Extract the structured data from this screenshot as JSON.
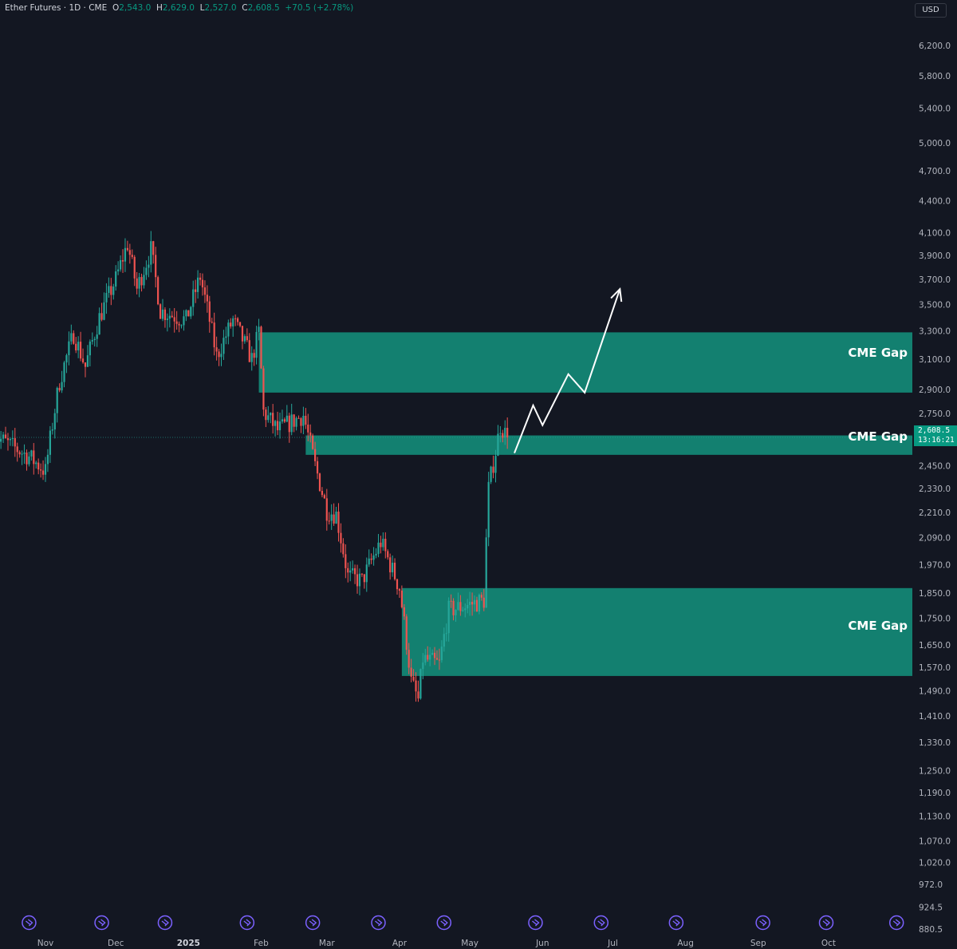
{
  "header": {
    "symbol": "Ether Futures · 1D · CME",
    "o_label": "O",
    "o": "2,543.0",
    "h_label": "H",
    "h": "2,629.0",
    "l_label": "L",
    "l": "2,527.0",
    "c_label": "C",
    "c": "2,608.5",
    "change": "+70.5 (+2.78%)"
  },
  "currency": "USD",
  "last_price": {
    "price": "2,608.5",
    "countdown": "13:16:21"
  },
  "colors": {
    "background": "#131722",
    "up": "#26a69a",
    "down": "#ef5350",
    "gap_zone": "#138070",
    "axis_text": "#b2b5be",
    "arrow": "#ffffff",
    "event_icon": "#7b61ff"
  },
  "chart_data": {
    "type": "candlestick",
    "y_scale": "log",
    "ylim": [
      880.5,
      6400
    ],
    "y_ticks": [
      "6,200.0",
      "5,800.0",
      "5,400.0",
      "5,000.0",
      "4,700.0",
      "4,400.0",
      "4,100.0",
      "3,900.0",
      "3,700.0",
      "3,500.0",
      "3,300.0",
      "3,100.0",
      "2,900.0",
      "2,750.0",
      "2,450.0",
      "2,330.0",
      "2,210.0",
      "2,090.0",
      "1,970.0",
      "1,850.0",
      "1,750.0",
      "1,650.0",
      "1,570.0",
      "1,490.0",
      "1,410.0",
      "1,330.0",
      "1,250.0",
      "1,190.0",
      "1,130.0",
      "1,070.0",
      "1,020.0",
      "972.0",
      "924.5",
      "880.5"
    ],
    "x_ticks": [
      {
        "label": "Nov",
        "date": "2024-11-01"
      },
      {
        "label": "Dec",
        "date": "2024-12-01"
      },
      {
        "label": "2025",
        "date": "2025-01-01"
      },
      {
        "label": "Feb",
        "date": "2025-02-01"
      },
      {
        "label": "Mar",
        "date": "2025-03-01"
      },
      {
        "label": "Apr",
        "date": "2025-04-01"
      },
      {
        "label": "May",
        "date": "2025-05-01"
      },
      {
        "label": "Jun",
        "date": "2025-06-01"
      },
      {
        "label": "Jul",
        "date": "2025-07-01"
      },
      {
        "label": "Aug",
        "date": "2025-08-01"
      },
      {
        "label": "Sep",
        "date": "2025-09-01"
      },
      {
        "label": "Oct",
        "date": "2025-10-01"
      }
    ],
    "event_markers": [
      "2024-10-25",
      "2024-11-25",
      "2024-12-22",
      "2025-01-26",
      "2025-02-23",
      "2025-03-23",
      "2025-04-20",
      "2025-05-29",
      "2025-06-26",
      "2025-07-28",
      "2025-09-03",
      "2025-09-30",
      "2025-10-30"
    ],
    "annotations": [
      {
        "label": "CME Gap",
        "from_date": "2025-01-31",
        "low": 2880,
        "high": 3290
      },
      {
        "label": "CME Gap",
        "from_date": "2025-02-20",
        "low": 2510,
        "high": 2620
      },
      {
        "label": "CME Gap",
        "from_date": "2025-04-02",
        "low": 1540,
        "high": 1870
      }
    ],
    "projection": [
      {
        "date": "2025-05-20",
        "price": 2520
      },
      {
        "date": "2025-05-28",
        "price": 2800
      },
      {
        "date": "2025-06-01",
        "price": 2680
      },
      {
        "date": "2025-06-12",
        "price": 3000
      },
      {
        "date": "2025-06-19",
        "price": 2880
      },
      {
        "date": "2025-07-04",
        "price": 3620
      }
    ],
    "anchors": [
      {
        "date": "2024-10-10",
        "price": 2620
      },
      {
        "date": "2024-10-25",
        "price": 2500
      },
      {
        "date": "2024-11-01",
        "price": 2420
      },
      {
        "date": "2024-11-07",
        "price": 2950
      },
      {
        "date": "2024-11-13",
        "price": 3280
      },
      {
        "date": "2024-11-18",
        "price": 3050
      },
      {
        "date": "2024-11-24",
        "price": 3400
      },
      {
        "date": "2024-12-01",
        "price": 3700
      },
      {
        "date": "2024-12-06",
        "price": 4000
      },
      {
        "date": "2024-12-10",
        "price": 3620
      },
      {
        "date": "2024-12-16",
        "price": 3950
      },
      {
        "date": "2024-12-20",
        "price": 3450
      },
      {
        "date": "2024-12-31",
        "price": 3380
      },
      {
        "date": "2025-01-06",
        "price": 3720
      },
      {
        "date": "2025-01-13",
        "price": 3120
      },
      {
        "date": "2025-01-20",
        "price": 3380
      },
      {
        "date": "2025-01-28",
        "price": 3100
      },
      {
        "date": "2025-01-31",
        "price": 3290
      },
      {
        "date": "2025-02-02",
        "price": 2760
      },
      {
        "date": "2025-02-08",
        "price": 2650
      },
      {
        "date": "2025-02-19",
        "price": 2740
      },
      {
        "date": "2025-02-24",
        "price": 2450
      },
      {
        "date": "2025-03-01",
        "price": 2220
      },
      {
        "date": "2025-03-05",
        "price": 2200
      },
      {
        "date": "2025-03-10",
        "price": 1920
      },
      {
        "date": "2025-03-16",
        "price": 1900
      },
      {
        "date": "2025-03-24",
        "price": 2070
      },
      {
        "date": "2025-04-01",
        "price": 1870
      },
      {
        "date": "2025-04-06",
        "price": 1520
      },
      {
        "date": "2025-04-09",
        "price": 1460
      },
      {
        "date": "2025-04-11",
        "price": 1600
      },
      {
        "date": "2025-04-18",
        "price": 1580
      },
      {
        "date": "2025-04-22",
        "price": 1780
      },
      {
        "date": "2025-05-07",
        "price": 1820
      },
      {
        "date": "2025-05-08",
        "price": 2080
      },
      {
        "date": "2025-05-09",
        "price": 2330
      },
      {
        "date": "2025-05-12",
        "price": 2530
      },
      {
        "date": "2025-05-14",
        "price": 2680
      },
      {
        "date": "2025-05-17",
        "price": 2608.5
      }
    ]
  }
}
